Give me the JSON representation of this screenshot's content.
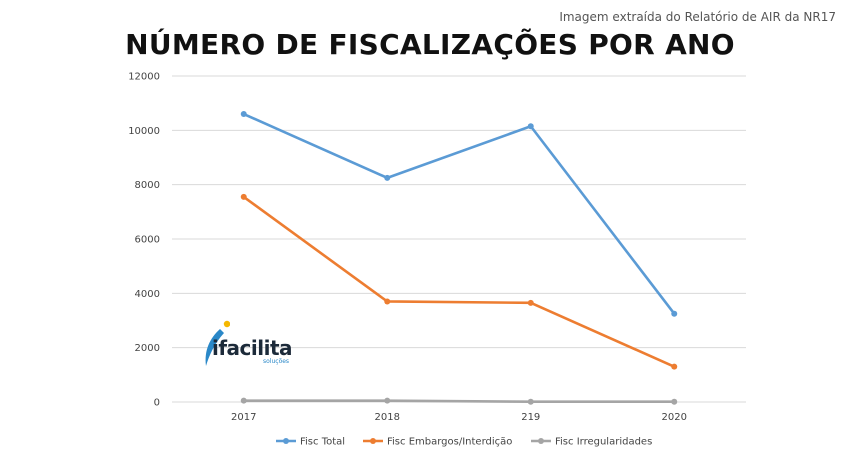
{
  "header": {
    "source_note": "Imagem extraída do Relatório de AIR da NR17"
  },
  "logo": {
    "text": "ifacilita",
    "subtext": "soluções"
  },
  "colors": {
    "series1": "#5b9bd5",
    "series2": "#ed7d31",
    "series3": "#a5a5a5",
    "grid": "#d9d9d9",
    "logo_accent": "#f5b800",
    "logo_blue": "#2a88c8"
  },
  "chart_data": {
    "type": "line",
    "title": "NÚMERO DE FISCALIZAÇÕES POR ANO",
    "xlabel": "",
    "ylabel": "",
    "categories": [
      "2017",
      "2018",
      "219",
      "2020"
    ],
    "ylim": [
      0,
      12000
    ],
    "yticks": [
      0,
      2000,
      4000,
      6000,
      8000,
      10000,
      12000
    ],
    "grid": true,
    "legend_position": "bottom",
    "series": [
      {
        "name": "Fisc Total",
        "values": [
          10600,
          8250,
          10150,
          3250
        ]
      },
      {
        "name": "Fisc Embargos/Interdição",
        "values": [
          7550,
          3700,
          3650,
          1300
        ]
      },
      {
        "name": "Fisc Irregularidades",
        "values": [
          50,
          50,
          10,
          10
        ]
      }
    ]
  }
}
